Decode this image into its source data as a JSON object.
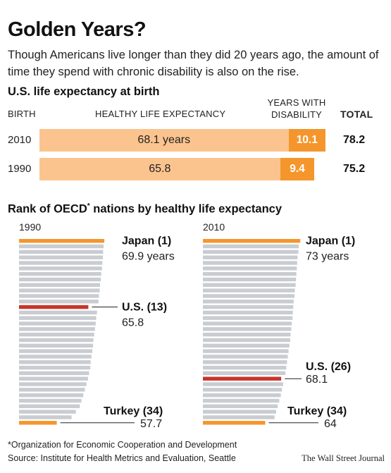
{
  "title": "Golden Years?",
  "subtitle": "Though Americans live longer than they did 20 years ago, the amount of time they spend with chronic disability is also on the rise.",
  "colors": {
    "healthy": "#fbc48f",
    "disability": "#f4962c",
    "rank_bar": "#c9ccd1",
    "japan": "#f4962c",
    "us": "#c6352b",
    "turkey": "#f4962c"
  },
  "chart_data": [
    {
      "type": "bar",
      "orientation": "horizontal",
      "stacked": true,
      "title": "U.S. life expectancy at birth",
      "headers": {
        "birth": "BIRTH",
        "healthy": "HEALTHY LIFE EXPECTANCY",
        "disability": "YEARS WITH DISABILITY",
        "total": "TOTAL"
      },
      "categories": [
        "2010",
        "1990"
      ],
      "series": [
        {
          "name": "HEALTHY LIFE EXPECTANCY",
          "values": [
            68.1,
            65.8
          ],
          "labels": [
            "68.1 years",
            "65.8"
          ]
        },
        {
          "name": "YEARS WITH DISABILITY",
          "values": [
            10.1,
            9.4
          ],
          "labels": [
            "10.1",
            "9.4"
          ]
        }
      ],
      "totals": [
        "78.2",
        "75.2"
      ],
      "xlim": [
        0,
        78.2
      ]
    },
    {
      "type": "bar",
      "orientation": "horizontal",
      "title": "Rank of OECD* nations by healthy life expectancy",
      "panels": [
        {
          "year": "1990",
          "values": [
            69.9,
            69.7,
            69.6,
            69.5,
            69.4,
            69.3,
            69.1,
            69.0,
            68.8,
            68.7,
            68.5,
            68.4,
            65.8,
            68.0,
            67.8,
            67.7,
            67.5,
            67.3,
            67.1,
            67.0,
            66.8,
            66.6,
            66.4,
            66.3,
            66.0,
            65.7,
            65.3,
            64.9,
            64.5,
            64.0,
            63.6,
            62.6,
            61.5,
            57.7
          ],
          "labels": [
            {
              "rank": 1,
              "name": "Japan (1)",
              "value": "69.9 years"
            },
            {
              "rank": 13,
              "name": "U.S. (13)",
              "value": "65.8"
            },
            {
              "rank": 34,
              "name": "Turkey (34)",
              "value": "57.7"
            }
          ]
        },
        {
          "year": "2010",
          "values": [
            73.0,
            72.6,
            72.5,
            72.3,
            72.2,
            72.1,
            72.0,
            71.9,
            71.8,
            71.6,
            71.5,
            71.3,
            71.2,
            71.1,
            71.0,
            70.8,
            70.7,
            70.5,
            70.4,
            70.2,
            70.0,
            69.8,
            69.6,
            69.4,
            69.2,
            68.1,
            68.6,
            68.3,
            68.0,
            67.6,
            67.2,
            66.8,
            66.4,
            64.0
          ],
          "labels": [
            {
              "rank": 1,
              "name": "Japan (1)",
              "value": "73 years"
            },
            {
              "rank": 26,
              "name": "U.S. (26)",
              "value": "68.1"
            },
            {
              "rank": 34,
              "name": "Turkey (34)",
              "value": "64"
            }
          ]
        }
      ]
    }
  ],
  "footnote": "*Organization for Economic Cooperation and Development",
  "source": "Source:  Institute for Health Metrics and Evaluation, Seattle",
  "credit": "The Wall Street Journal"
}
